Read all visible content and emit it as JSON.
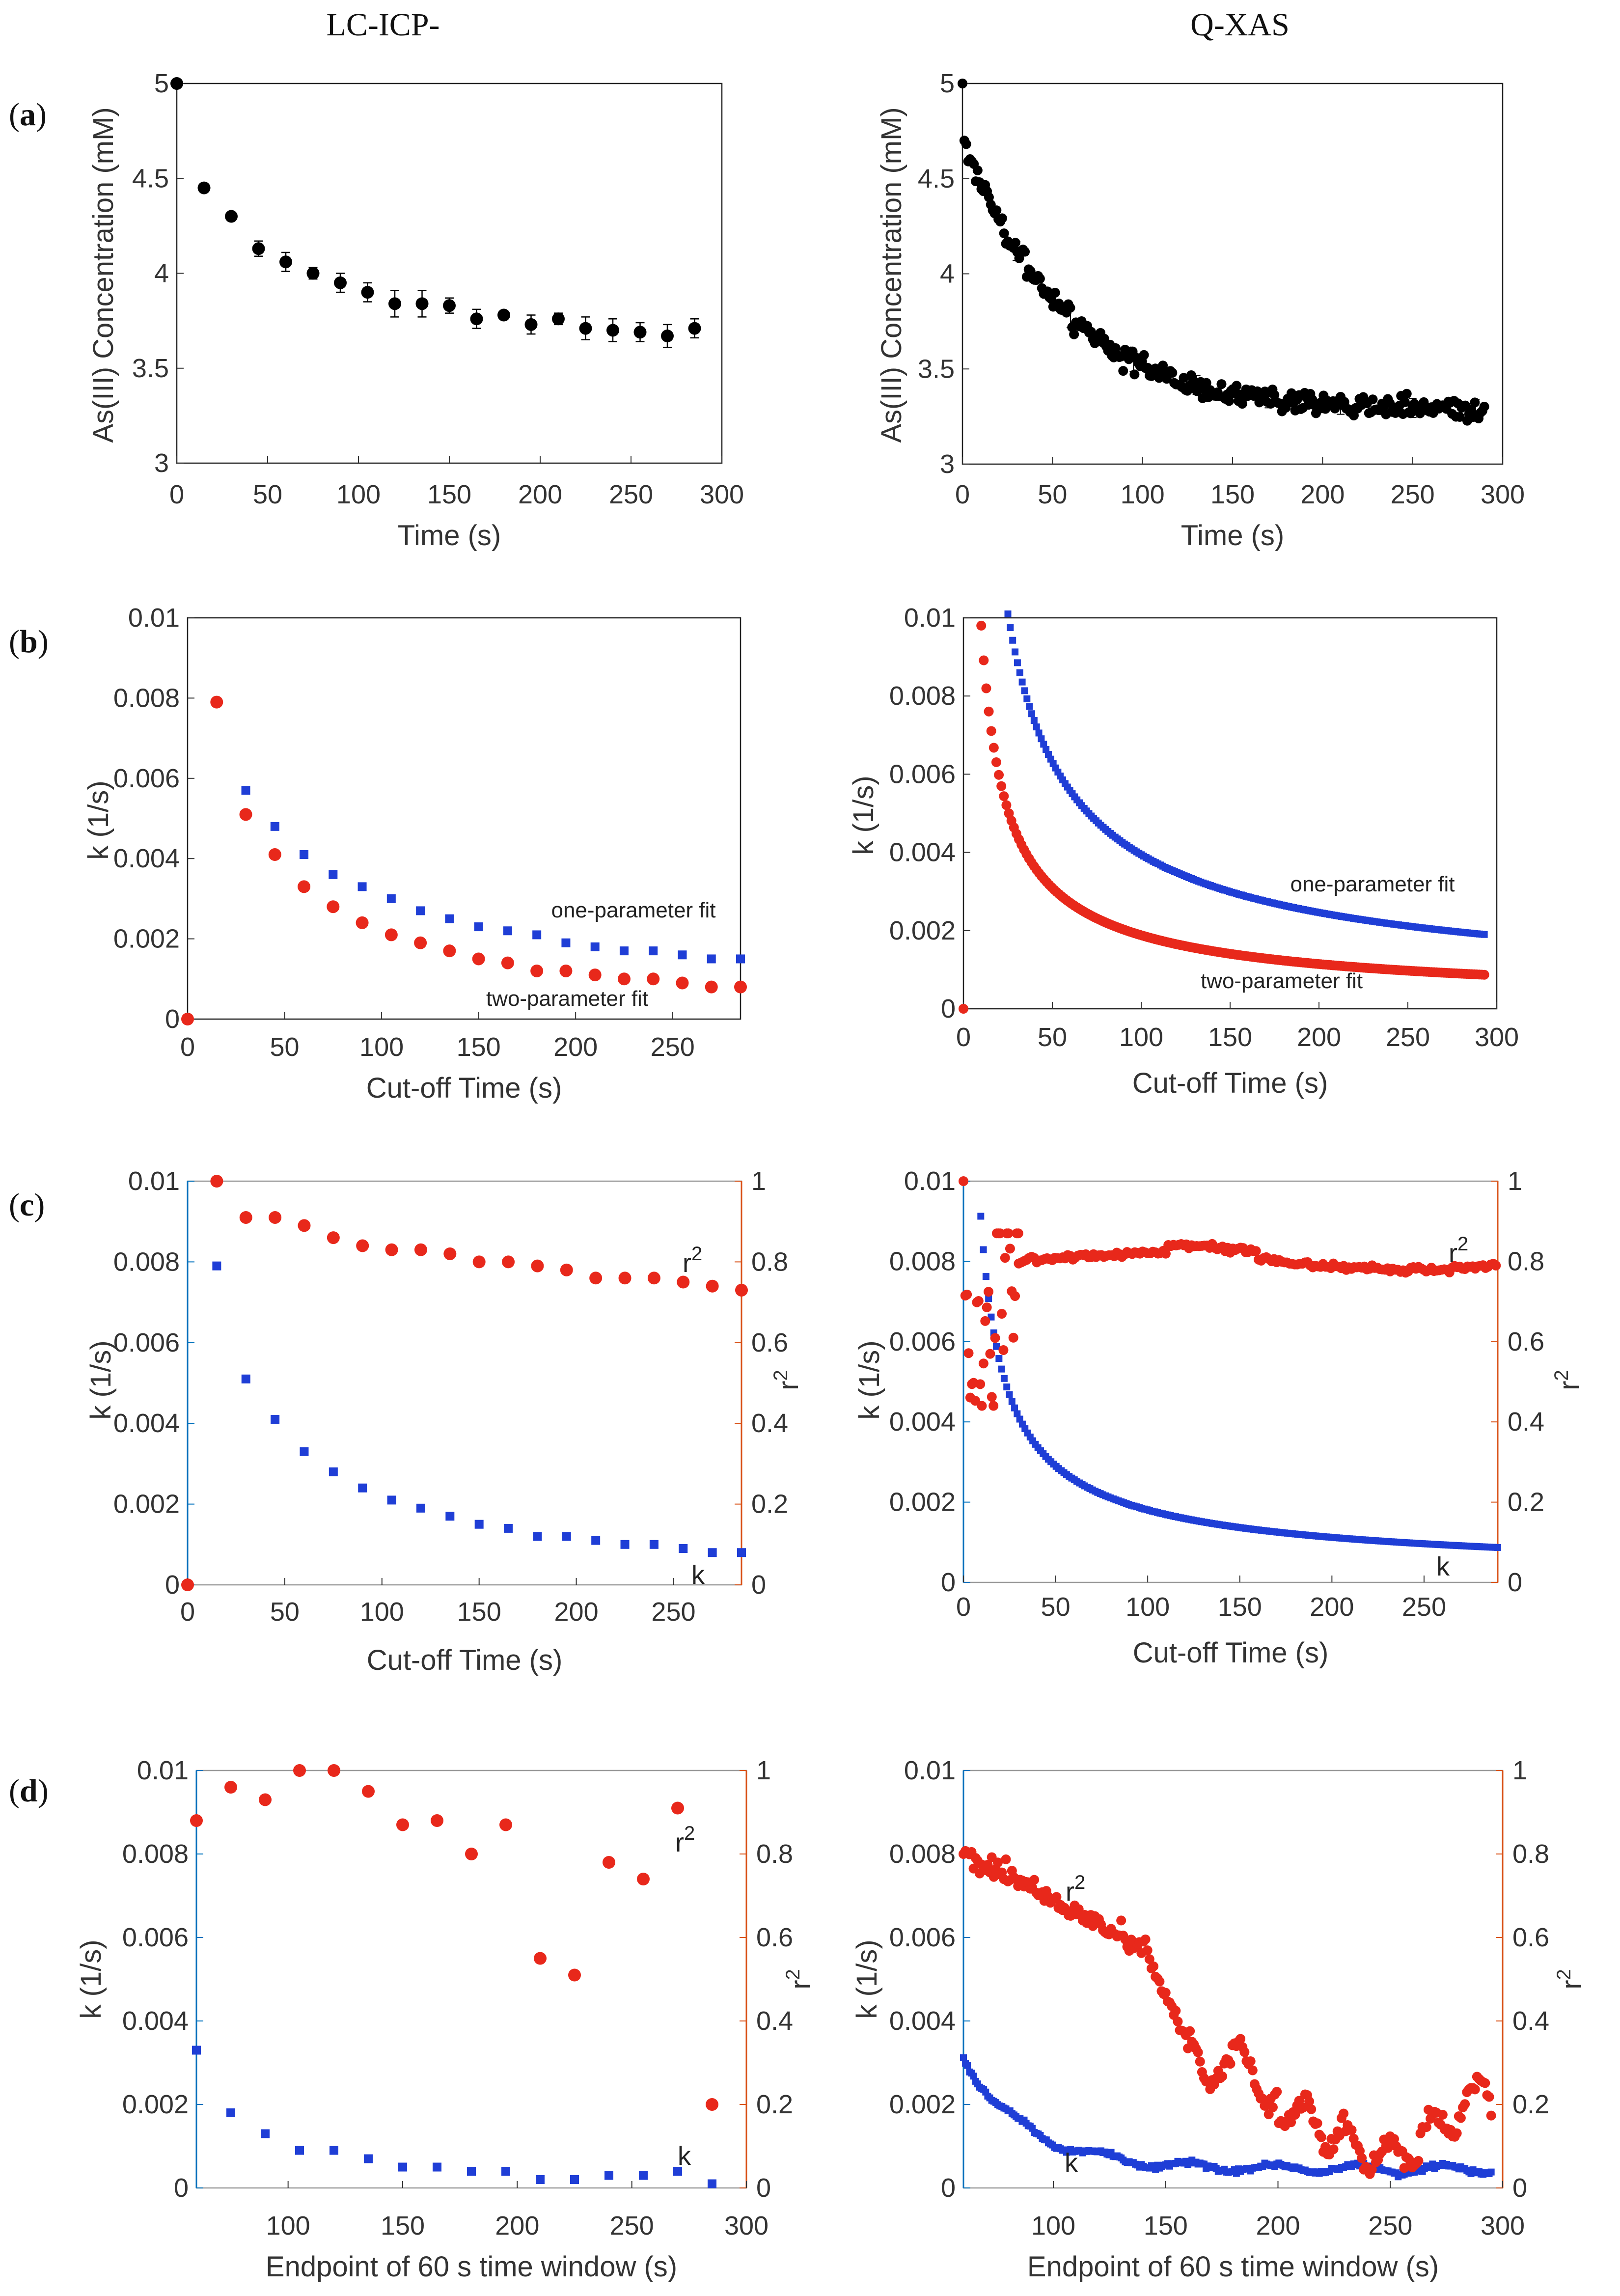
{
  "column_titles": [
    "LC-ICP-",
    "Q-XAS"
  ],
  "row_labels": [
    {
      "open": "(",
      "letter": "a",
      "close": ")"
    },
    {
      "open": "(",
      "letter": "b",
      "close": ")"
    },
    {
      "open": "(",
      "letter": "c",
      "close": ")"
    },
    {
      "open": "(",
      "letter": "d",
      "close": ")"
    }
  ],
  "colors": {
    "black": "#000000",
    "blue": "#1f3ed6",
    "red": "#e8281b",
    "axis_blue": "#0072bd",
    "axis_orange": "#d95319",
    "frame": "#000000"
  },
  "chart_data": [
    {
      "id": "a-left",
      "type": "scatter",
      "title": "",
      "xlabel": "Time (s)",
      "ylabel": "As(III) Concentration (mM)",
      "xlim": [
        0,
        300
      ],
      "ylim": [
        3,
        5
      ],
      "xticks": [
        "0",
        "50",
        "100",
        "150",
        "200",
        "250",
        "300"
      ],
      "yticks": [
        "3",
        "3.5",
        "4",
        "4.5",
        "5"
      ],
      "series": [
        {
          "name": "As(III)",
          "color": "#000000",
          "marker": "dot",
          "x": [
            0,
            15,
            30,
            45,
            60,
            75,
            90,
            105,
            120,
            135,
            150,
            165,
            180,
            195,
            210,
            225,
            240,
            255,
            270,
            285
          ],
          "y": [
            5.0,
            4.45,
            4.3,
            4.13,
            4.06,
            4.0,
            3.95,
            3.9,
            3.84,
            3.84,
            3.83,
            3.76,
            3.78,
            3.73,
            3.76,
            3.71,
            3.7,
            3.69,
            3.67,
            3.71
          ],
          "err": [
            0,
            0,
            0,
            0.04,
            0.05,
            0.03,
            0.05,
            0.05,
            0.07,
            0.07,
            0.04,
            0.05,
            0.02,
            0.05,
            0.03,
            0.06,
            0.06,
            0.05,
            0.06,
            0.05
          ]
        }
      ]
    },
    {
      "id": "a-right",
      "type": "scatter",
      "title": "",
      "xlabel": "Time (s)",
      "ylabel": "As(III) Concentration (mM)",
      "xlim": [
        0,
        300
      ],
      "ylim": [
        3,
        5
      ],
      "xticks": [
        "0",
        "50",
        "100",
        "150",
        "200",
        "250",
        "300"
      ],
      "yticks": [
        "3",
        "3.5",
        "4",
        "4.5",
        "5"
      ],
      "series": [
        {
          "name": "As(III)",
          "color": "#000000",
          "marker": "dot",
          "generated": "qxas_decay",
          "x": [
            0,
            290
          ],
          "y": [
            5.0,
            3.3
          ],
          "noise": 0.06
        }
      ]
    },
    {
      "id": "b-left",
      "type": "scatter",
      "title": "",
      "xlabel": "Cut-off Time (s)",
      "ylabel": "k (1/s)",
      "xlim": [
        0,
        285
      ],
      "ylim": [
        0,
        0.01
      ],
      "xticks": [
        "0",
        "50",
        "100",
        "150",
        "200",
        "250"
      ],
      "yticks": [
        "0",
        "0.002",
        "0.004",
        "0.006",
        "0.008",
        "0.01"
      ],
      "annotations": [
        "one-parameter fit",
        "two-parameter fit"
      ],
      "series": [
        {
          "name": "one-parameter fit",
          "color": "#1f3ed6",
          "marker": "square",
          "x": [
            30,
            45,
            60,
            75,
            90,
            105,
            120,
            135,
            150,
            165,
            180,
            195,
            210,
            225,
            240,
            255,
            270,
            285
          ],
          "y": [
            0.0057,
            0.0048,
            0.0041,
            0.0036,
            0.0033,
            0.003,
            0.0027,
            0.0025,
            0.0023,
            0.0022,
            0.0021,
            0.0019,
            0.0018,
            0.0017,
            0.0017,
            0.0016,
            0.0015,
            0.0015
          ]
        },
        {
          "name": "two-parameter fit",
          "color": "#e8281b",
          "marker": "dot",
          "x": [
            0,
            15,
            30,
            45,
            60,
            75,
            90,
            105,
            120,
            135,
            150,
            165,
            180,
            195,
            210,
            225,
            240,
            255,
            270,
            285
          ],
          "y": [
            0.0,
            0.0079,
            0.0051,
            0.0041,
            0.0033,
            0.0028,
            0.0024,
            0.0021,
            0.0019,
            0.0017,
            0.0015,
            0.0014,
            0.0012,
            0.0012,
            0.0011,
            0.001,
            0.001,
            0.0009,
            0.0008,
            0.0008
          ]
        }
      ]
    },
    {
      "id": "b-right",
      "type": "scatter",
      "title": "",
      "xlabel": "Cut-off Time (s)",
      "ylabel": "k (1/s)",
      "xlim": [
        0,
        300
      ],
      "ylim": [
        0,
        0.01
      ],
      "xticks": [
        "0",
        "50",
        "100",
        "150",
        "200",
        "250",
        "300"
      ],
      "yticks": [
        "0",
        "0.002",
        "0.004",
        "0.006",
        "0.008",
        "0.01"
      ],
      "annotations": [
        "one-parameter fit",
        "two-parameter fit"
      ],
      "series": [
        {
          "name": "one-parameter fit",
          "color": "#1f3ed6",
          "marker": "square",
          "generated": "k_curve",
          "x": [
            25,
            293
          ],
          "y": [
            0.0101,
            0.0019
          ]
        },
        {
          "name": "two-parameter fit",
          "color": "#e8281b",
          "marker": "dot",
          "generated": "k_curve",
          "x": [
            10,
            293
          ],
          "y": [
            0.0098,
            0.00087
          ],
          "origin_point": [
            0,
            0
          ]
        }
      ]
    },
    {
      "id": "c-left",
      "type": "scatter",
      "title": "",
      "xlabel": "Cut-off Time (s)",
      "ylabel": "k (1/s)",
      "y2label": "r2",
      "xlim": [
        0,
        285
      ],
      "ylim": [
        0,
        0.01
      ],
      "y2lim": [
        0,
        1
      ],
      "xticks": [
        "0",
        "50",
        "100",
        "150",
        "200",
        "250"
      ],
      "yticks": [
        "0",
        "0.002",
        "0.004",
        "0.006",
        "0.008",
        "0.01"
      ],
      "y2ticks": [
        "0",
        "0.2",
        "0.4",
        "0.6",
        "0.8",
        "1"
      ],
      "annotations": [
        "r",
        "2",
        "k"
      ],
      "series": [
        {
          "name": "k",
          "color": "#1f3ed6",
          "marker": "square",
          "axis": "left",
          "x": [
            15,
            30,
            45,
            60,
            75,
            90,
            105,
            120,
            135,
            150,
            165,
            180,
            195,
            210,
            225,
            240,
            255,
            270,
            285
          ],
          "y": [
            0.0079,
            0.0051,
            0.0041,
            0.0033,
            0.0028,
            0.0024,
            0.0021,
            0.0019,
            0.0017,
            0.0015,
            0.0014,
            0.0012,
            0.0012,
            0.0011,
            0.001,
            0.001,
            0.0009,
            0.0008,
            0.0008
          ]
        },
        {
          "name": "r2",
          "color": "#e8281b",
          "marker": "dot",
          "axis": "right",
          "x": [
            0,
            15,
            30,
            45,
            60,
            75,
            90,
            105,
            120,
            135,
            150,
            165,
            180,
            195,
            210,
            225,
            240,
            255,
            270,
            285
          ],
          "y": [
            0.0,
            1.0,
            0.91,
            0.91,
            0.89,
            0.86,
            0.84,
            0.83,
            0.83,
            0.82,
            0.8,
            0.8,
            0.79,
            0.78,
            0.76,
            0.76,
            0.76,
            0.75,
            0.74,
            0.73
          ]
        }
      ]
    },
    {
      "id": "c-right",
      "type": "scatter",
      "title": "",
      "xlabel": "Cut-off Time (s)",
      "ylabel": "k (1/s)",
      "y2label": "r2",
      "xlim": [
        0,
        290
      ],
      "ylim": [
        0,
        0.01
      ],
      "y2lim": [
        0,
        1
      ],
      "xticks": [
        "0",
        "50",
        "100",
        "150",
        "200",
        "250"
      ],
      "yticks": [
        "0",
        "0.002",
        "0.004",
        "0.006",
        "0.008",
        "0.01"
      ],
      "y2ticks": [
        "0",
        "0.2",
        "0.4",
        "0.6",
        "0.8",
        "1"
      ],
      "annotations": [
        "r",
        "2",
        "k"
      ],
      "series": [
        {
          "name": "k",
          "color": "#1f3ed6",
          "marker": "square",
          "axis": "left",
          "generated": "k_curve",
          "x": [
            8,
            290
          ],
          "y": [
            0.0102,
            0.00087
          ]
        },
        {
          "name": "r2",
          "color": "#e8281b",
          "marker": "dot",
          "axis": "right",
          "generated": "r2_plateau",
          "x": [
            0,
            290
          ],
          "y": [
            1.0,
            0.8
          ]
        }
      ]
    },
    {
      "id": "d-left",
      "type": "scatter",
      "title": "",
      "xlabel": "Endpoint of 60 s time window (s)",
      "ylabel": "k (1/s)",
      "y2label": "r2",
      "xlim": [
        60,
        300
      ],
      "ylim": [
        0,
        0.01
      ],
      "y2lim": [
        0,
        1
      ],
      "xticks": [
        "100",
        "150",
        "200",
        "250",
        "300"
      ],
      "yticks": [
        "0",
        "0.002",
        "0.004",
        "0.006",
        "0.008",
        "0.01"
      ],
      "y2ticks": [
        "0",
        "0.2",
        "0.4",
        "0.6",
        "0.8",
        "1"
      ],
      "annotations": [
        "r",
        "2",
        "k"
      ],
      "series": [
        {
          "name": "k",
          "color": "#1f3ed6",
          "marker": "square",
          "axis": "left",
          "x": [
            60,
            75,
            90,
            105,
            120,
            135,
            150,
            165,
            180,
            195,
            210,
            225,
            240,
            255,
            270,
            285
          ],
          "y": [
            0.0033,
            0.0018,
            0.0013,
            0.0009,
            0.0009,
            0.0007,
            0.0005,
            0.0005,
            0.0004,
            0.0004,
            0.0002,
            0.0002,
            0.0003,
            0.0003,
            0.0004,
            0.0001
          ]
        },
        {
          "name": "r2",
          "color": "#e8281b",
          "marker": "dot",
          "axis": "right",
          "x": [
            60,
            75,
            90,
            105,
            120,
            135,
            150,
            165,
            180,
            195,
            210,
            225,
            240,
            255,
            270,
            285
          ],
          "y": [
            0.88,
            0.96,
            0.93,
            1.0,
            1.0,
            0.95,
            0.87,
            0.88,
            0.8,
            0.87,
            0.55,
            0.51,
            0.78,
            0.74,
            0.91,
            0.2
          ]
        }
      ]
    },
    {
      "id": "d-right",
      "type": "scatter",
      "title": "",
      "xlabel": "Endpoint of 60 s time window (s)",
      "ylabel": "k (1/s)",
      "y2label": "r2",
      "xlim": [
        60,
        300
      ],
      "ylim": [
        0,
        0.01
      ],
      "y2lim": [
        0,
        1
      ],
      "xticks": [
        "100",
        "150",
        "200",
        "250",
        "300"
      ],
      "yticks": [
        "0.01",
        "0.008",
        "0.006",
        "0.004",
        "0.002",
        "0"
      ],
      "y2ticks": [
        "1",
        "0.8",
        "0.6",
        "0.4",
        "0.2",
        "0"
      ],
      "annotations": [
        "r",
        "2",
        "k"
      ],
      "series": [
        {
          "name": "k",
          "color": "#1f3ed6",
          "marker": "square",
          "axis": "left",
          "generated": "k_window",
          "x": [
            60,
            295
          ],
          "y": [
            0.0032,
            0.0005
          ]
        },
        {
          "name": "r2",
          "color": "#e8281b",
          "marker": "dot",
          "axis": "right",
          "generated": "r2_window",
          "x": [
            60,
            295
          ],
          "y": [
            0.8,
            0.2
          ]
        }
      ]
    }
  ]
}
